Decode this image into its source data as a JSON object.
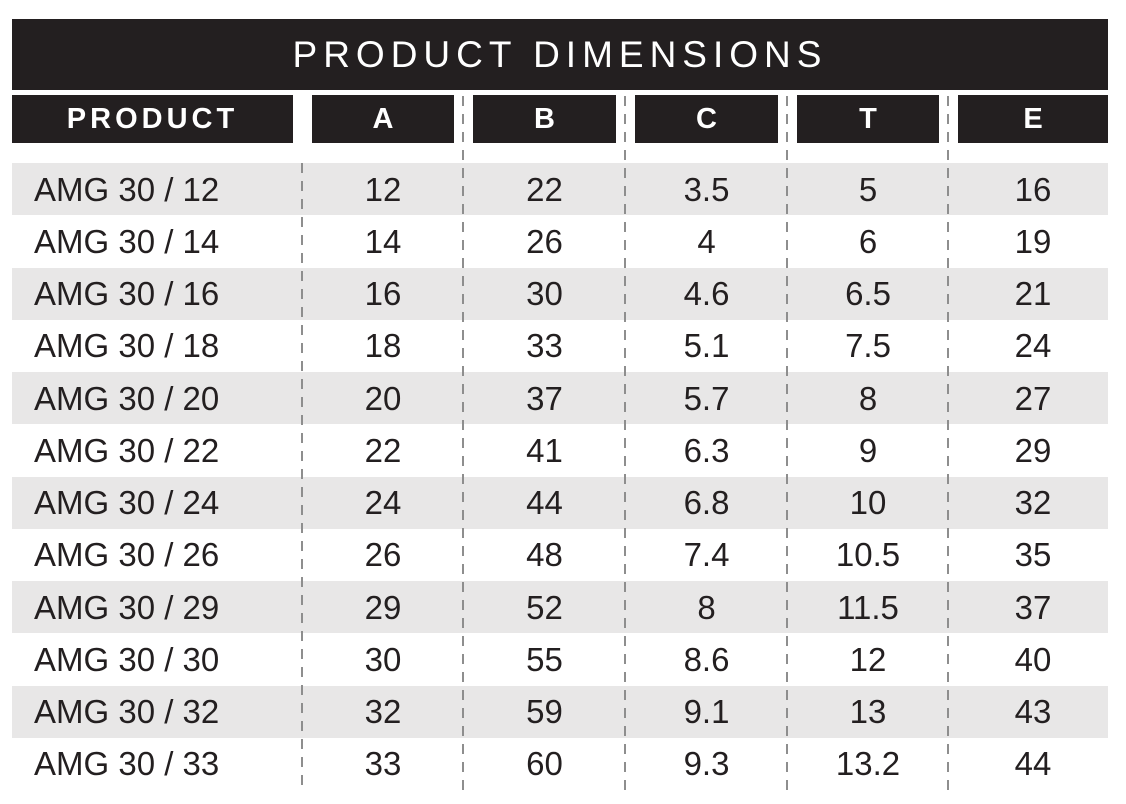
{
  "title": "PRODUCT DIMENSIONS",
  "columns": [
    "PRODUCT",
    "A",
    "B",
    "C",
    "T",
    "E"
  ],
  "rows": [
    [
      "AMG 30 / 12",
      "12",
      "22",
      "3.5",
      "5",
      "16"
    ],
    [
      "AMG 30 / 14",
      "14",
      "26",
      "4",
      "6",
      "19"
    ],
    [
      "AMG 30 / 16",
      "16",
      "30",
      "4.6",
      "6.5",
      "21"
    ],
    [
      "AMG 30 / 18",
      "18",
      "33",
      "5.1",
      "7.5",
      "24"
    ],
    [
      "AMG 30 / 20",
      "20",
      "37",
      "5.7",
      "8",
      "27"
    ],
    [
      "AMG 30 / 22",
      "22",
      "41",
      "6.3",
      "9",
      "29"
    ],
    [
      "AMG 30 / 24",
      "24",
      "44",
      "6.8",
      "10",
      "32"
    ],
    [
      "AMG 30 / 26",
      "26",
      "48",
      "7.4",
      "10.5",
      "35"
    ],
    [
      "AMG 30 / 29",
      "29",
      "52",
      "8",
      "11.5",
      "37"
    ],
    [
      "AMG 30 / 30",
      "30",
      "55",
      "8.6",
      "12",
      "40"
    ],
    [
      "AMG 30 / 32",
      "32",
      "59",
      "9.1",
      "13",
      "43"
    ],
    [
      "AMG 30 / 33",
      "33",
      "60",
      "9.3",
      "13.2",
      "44"
    ]
  ],
  "colors": {
    "header_bg": "#231f20",
    "header_fg": "#ffffff",
    "row_alt_bg": "#e8e7e7",
    "text": "#231f20",
    "divider": "#8e8e8e"
  }
}
